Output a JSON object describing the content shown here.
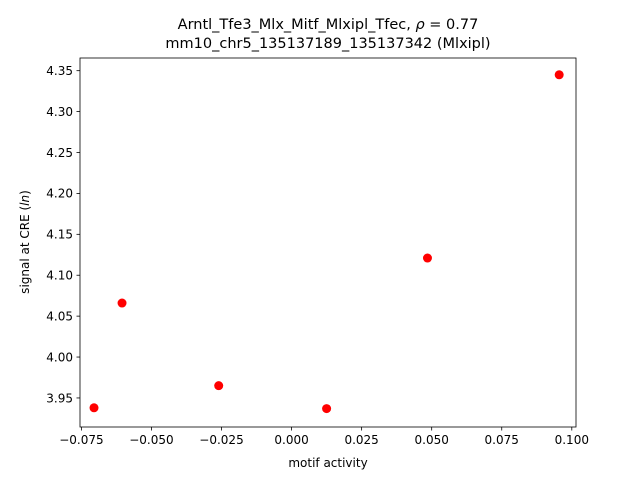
{
  "chart_data": {
    "type": "scatter",
    "title_line1_prefix": "Arntl_Tfe3_Mlx_Mitf_Mlxipl_Tfec, ",
    "title_rho_symbol": "ρ",
    "title_rho_value": " = 0.77",
    "title_line2": "mm10_chr5_135137189_135137342 (Mlxipl)",
    "xlabel": "motif activity",
    "ylabel_prefix": "signal at CRE (",
    "ylabel_italic": "ln",
    "ylabel_suffix": ")",
    "xlim": [
      -0.0755,
      0.1015
    ],
    "ylim": [
      3.9145,
      4.3655
    ],
    "xticks": [
      -0.075,
      -0.05,
      -0.025,
      0.0,
      0.025,
      0.05,
      0.075,
      0.1
    ],
    "xtick_labels": [
      "−0.075",
      "−0.050",
      "−0.025",
      "0.000",
      "0.025",
      "0.050",
      "0.075",
      "0.100"
    ],
    "yticks": [
      3.95,
      4.0,
      4.05,
      4.1,
      4.15,
      4.2,
      4.25,
      4.3,
      4.35
    ],
    "ytick_labels": [
      "3.95",
      "4.00",
      "4.05",
      "4.10",
      "4.15",
      "4.20",
      "4.25",
      "4.30",
      "4.35"
    ],
    "points": [
      {
        "x": -0.0705,
        "y": 3.938
      },
      {
        "x": -0.0605,
        "y": 4.066
      },
      {
        "x": -0.026,
        "y": 3.965
      },
      {
        "x": 0.0125,
        "y": 3.937
      },
      {
        "x": 0.0485,
        "y": 4.121
      },
      {
        "x": 0.0955,
        "y": 4.345
      }
    ],
    "marker_color": "#ff0000",
    "grid": false
  }
}
